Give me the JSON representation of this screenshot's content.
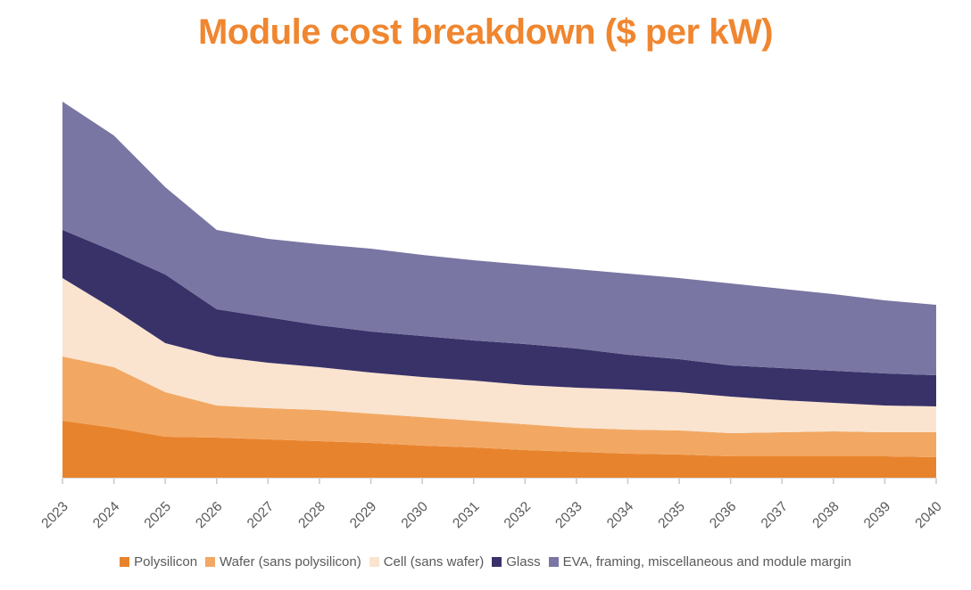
{
  "colors": {
    "title": "#F0862F",
    "axis_line": "#D9D9D9",
    "tick": "#C8C8C8",
    "axis_label": "#595959",
    "legend_text": "#595959",
    "background": "#FFFFFF"
  },
  "chart_data": {
    "type": "area",
    "stacked": true,
    "title": "Module cost breakdown ($ per kW)",
    "xlabel": "",
    "ylabel": "",
    "y_axis_visible": false,
    "grid": false,
    "legend_position": "bottom",
    "x": [
      2023,
      2024,
      2025,
      2026,
      2027,
      2028,
      2029,
      2030,
      2031,
      2032,
      2033,
      2034,
      2035,
      2036,
      2037,
      2038,
      2039,
      2040
    ],
    "ylim": [
      0,
      218
    ],
    "series": [
      {
        "key": "polysilicon",
        "name": "Polysilicon",
        "color": "#E8832D",
        "values": [
          32,
          28,
          23,
          22.5,
          21.5,
          20.5,
          19.5,
          18,
          17,
          15.5,
          14.5,
          13.5,
          13,
          12,
          12,
          12,
          12,
          11.5
        ]
      },
      {
        "key": "wafer",
        "name": "Wafer (sans polysilicon)",
        "color": "#F2A863",
        "values": [
          36,
          34,
          25,
          18,
          17.5,
          17.5,
          16.5,
          16,
          15,
          14.5,
          13.5,
          13.5,
          13.5,
          13,
          13.5,
          14,
          13.5,
          14
        ]
      },
      {
        "key": "cell",
        "name": "Cell (sans wafer)",
        "color": "#FAE4D0",
        "values": [
          44,
          32.5,
          27.5,
          27.5,
          25.5,
          24,
          23,
          22.5,
          22.5,
          22,
          22.5,
          22.5,
          21.5,
          20.5,
          18,
          16,
          15,
          14.5
        ]
      },
      {
        "key": "glass",
        "name": "Glass",
        "color": "#393269",
        "values": [
          27,
          32.5,
          38.5,
          26.5,
          25.5,
          23.5,
          23,
          23,
          22.5,
          23,
          22,
          19.5,
          18.5,
          17.5,
          18,
          18,
          18,
          17.5
        ]
      },
      {
        "key": "eva",
        "name": "EVA, framing, miscellaneous and module margin",
        "color": "#7A76A3",
        "values": [
          72,
          65,
          49,
          44.5,
          44,
          45.5,
          46.5,
          45.5,
          45,
          44.5,
          44.5,
          45.5,
          45.5,
          46,
          44.5,
          43,
          41,
          39.5
        ]
      }
    ]
  }
}
